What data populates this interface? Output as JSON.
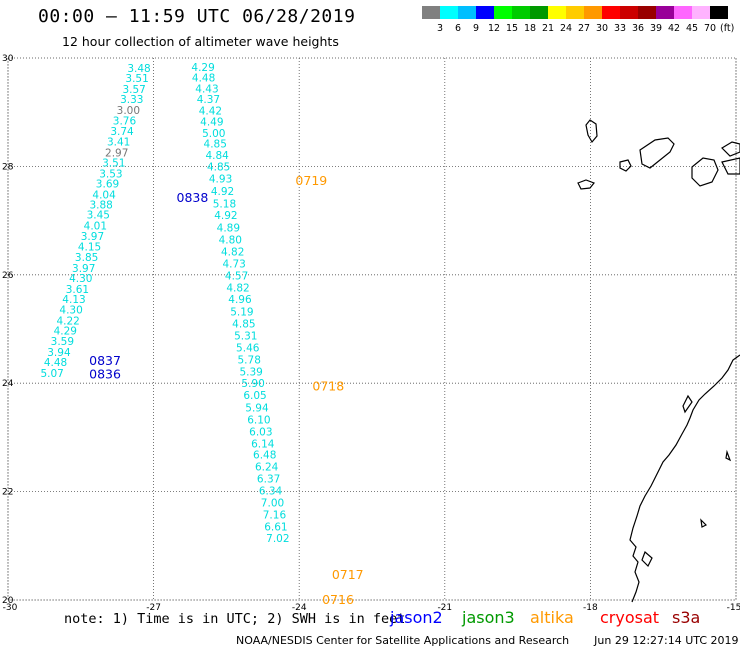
{
  "header": {
    "title": "00:00 – 11:59 UTC 06/28/2019",
    "subtitle": "12 hour collection of altimeter wave heights"
  },
  "legend": {
    "unit": "(ft)",
    "bins": [
      {
        "color": "#808080",
        "label": "3"
      },
      {
        "color": "#00ffff",
        "label": "6"
      },
      {
        "color": "#00bfff",
        "label": "9"
      },
      {
        "color": "#0000ff",
        "label": "12"
      },
      {
        "color": "#00ff00",
        "label": "15"
      },
      {
        "color": "#00cc00",
        "label": "18"
      },
      {
        "color": "#009900",
        "label": "21"
      },
      {
        "color": "#ffff00",
        "label": "24"
      },
      {
        "color": "#ffcc00",
        "label": "27"
      },
      {
        "color": "#ff9900",
        "label": "30"
      },
      {
        "color": "#ff0000",
        "label": "33"
      },
      {
        "color": "#cc0000",
        "label": "36"
      },
      {
        "color": "#990000",
        "label": "39"
      },
      {
        "color": "#990099",
        "label": "42"
      },
      {
        "color": "#ff66ff",
        "label": "45"
      },
      {
        "color": "#ffb3ff",
        "label": "70"
      },
      {
        "color": "#000000",
        "label": ""
      }
    ]
  },
  "footer": {
    "note": "note: 1) Time is in UTC; 2) SWH is in feet",
    "satellites": [
      {
        "name": "jason2",
        "color": "#0000ff"
      },
      {
        "name": "jason3",
        "color": "#009900"
      },
      {
        "name": "altika",
        "color": "#ff9900"
      },
      {
        "name": "cryosat",
        "color": "#ff0000"
      },
      {
        "name": "s3a",
        "color": "#990000"
      }
    ],
    "credit": "NOAA/NESDIS Center for Satellite Applications and Research",
    "timestamp": "Jun 29 12:27:14 UTC 2019"
  },
  "chart_data": {
    "type": "scatter",
    "title": "12 hour collection of altimeter wave heights",
    "xlim": [
      -30,
      -15
    ],
    "ylim": [
      20,
      30
    ],
    "x_ticks": [
      -30,
      -27,
      -24,
      -21,
      -18,
      -15
    ],
    "x_tick_labels": [
      "-30",
      "-27",
      "-24",
      "-21",
      "-18",
      "-15"
    ],
    "y_ticks": [
      20,
      22,
      24,
      26,
      28,
      30
    ],
    "grid": true,
    "series": [
      {
        "name": "jason2",
        "color": "#00dddd",
        "points": [
          {
            "lon": -27.3,
            "lat": 29.82,
            "v": "3.48"
          },
          {
            "lon": -27.34,
            "lat": 29.63,
            "v": "3.51"
          },
          {
            "lon": -27.4,
            "lat": 29.43,
            "v": "3.57"
          },
          {
            "lon": -27.45,
            "lat": 29.24,
            "v": "3.33"
          },
          {
            "lon": -27.52,
            "lat": 29.04,
            "v": "3.00",
            "c": "#777777"
          },
          {
            "lon": -27.6,
            "lat": 28.85,
            "v": "3.76"
          },
          {
            "lon": -27.65,
            "lat": 28.65,
            "v": "3.74"
          },
          {
            "lon": -27.72,
            "lat": 28.46,
            "v": "3.41"
          },
          {
            "lon": -27.76,
            "lat": 28.26,
            "v": "2.97",
            "c": "#777777"
          },
          {
            "lon": -27.82,
            "lat": 28.07,
            "v": "3.51"
          },
          {
            "lon": -27.88,
            "lat": 27.87,
            "v": "3.53"
          },
          {
            "lon": -27.95,
            "lat": 27.68,
            "v": "3.69"
          },
          {
            "lon": -28.02,
            "lat": 27.48,
            "v": "4.04"
          },
          {
            "lon": -28.08,
            "lat": 27.3,
            "v": "3.88"
          },
          {
            "lon": -28.14,
            "lat": 27.11,
            "v": "3.45"
          },
          {
            "lon": -28.2,
            "lat": 26.91,
            "v": "4.01"
          },
          {
            "lon": -28.26,
            "lat": 26.72,
            "v": "3.97"
          },
          {
            "lon": -28.32,
            "lat": 26.52,
            "v": "4.15"
          },
          {
            "lon": -28.38,
            "lat": 26.33,
            "v": "3.85"
          },
          {
            "lon": -28.44,
            "lat": 26.13,
            "v": "3.97"
          },
          {
            "lon": -28.5,
            "lat": 25.94,
            "v": "4.30"
          },
          {
            "lon": -28.57,
            "lat": 25.74,
            "v": "3.61"
          },
          {
            "lon": -28.64,
            "lat": 25.55,
            "v": "4.13"
          },
          {
            "lon": -28.7,
            "lat": 25.36,
            "v": "4.30"
          },
          {
            "lon": -28.76,
            "lat": 25.16,
            "v": "4.22"
          },
          {
            "lon": -28.82,
            "lat": 24.97,
            "v": "4.29"
          },
          {
            "lon": -28.88,
            "lat": 24.78,
            "v": "3.59"
          },
          {
            "lon": -28.95,
            "lat": 24.58,
            "v": "3.94"
          },
          {
            "lon": -29.02,
            "lat": 24.39,
            "v": "4.48"
          },
          {
            "lon": -29.09,
            "lat": 24.19,
            "v": "5.07"
          }
        ]
      },
      {
        "name": "altika",
        "color": "#00dddd",
        "points": [
          {
            "lon": -25.98,
            "lat": 29.83,
            "v": "4.29"
          },
          {
            "lon": -25.97,
            "lat": 29.64,
            "v": "4.48"
          },
          {
            "lon": -25.9,
            "lat": 29.44,
            "v": "4.43"
          },
          {
            "lon": -25.87,
            "lat": 29.24,
            "v": "4.37"
          },
          {
            "lon": -25.83,
            "lat": 29.03,
            "v": "4.42"
          },
          {
            "lon": -25.8,
            "lat": 28.83,
            "v": "4.49"
          },
          {
            "lon": -25.76,
            "lat": 28.62,
            "v": "5.00"
          },
          {
            "lon": -25.73,
            "lat": 28.42,
            "v": "4.85"
          },
          {
            "lon": -25.69,
            "lat": 28.21,
            "v": "4.84"
          },
          {
            "lon": -25.66,
            "lat": 28.0,
            "v": "4.85"
          },
          {
            "lon": -25.62,
            "lat": 27.78,
            "v": "4.93"
          },
          {
            "lon": -25.58,
            "lat": 27.55,
            "v": "4.92"
          },
          {
            "lon": -25.54,
            "lat": 27.32,
            "v": "5.18"
          },
          {
            "lon": -25.51,
            "lat": 27.1,
            "v": "4.92"
          },
          {
            "lon": -25.46,
            "lat": 26.87,
            "v": "4.89"
          },
          {
            "lon": -25.42,
            "lat": 26.65,
            "v": "4.80"
          },
          {
            "lon": -25.37,
            "lat": 26.43,
            "v": "4.82"
          },
          {
            "lon": -25.34,
            "lat": 26.21,
            "v": "4.73"
          },
          {
            "lon": -25.29,
            "lat": 25.99,
            "v": "4.57"
          },
          {
            "lon": -25.26,
            "lat": 25.77,
            "v": "4.82"
          },
          {
            "lon": -25.22,
            "lat": 25.55,
            "v": "4.96"
          },
          {
            "lon": -25.18,
            "lat": 25.32,
            "v": "5.19"
          },
          {
            "lon": -25.14,
            "lat": 25.1,
            "v": "4.85"
          },
          {
            "lon": -25.1,
            "lat": 24.88,
            "v": "5.31"
          },
          {
            "lon": -25.06,
            "lat": 24.66,
            "v": "5.46"
          },
          {
            "lon": -25.03,
            "lat": 24.44,
            "v": "5.78"
          },
          {
            "lon": -24.99,
            "lat": 24.22,
            "v": "5.39"
          },
          {
            "lon": -24.95,
            "lat": 24.0,
            "v": "5.90"
          },
          {
            "lon": -24.91,
            "lat": 23.78,
            "v": "6.05"
          },
          {
            "lon": -24.87,
            "lat": 23.55,
            "v": "5.94"
          },
          {
            "lon": -24.83,
            "lat": 23.33,
            "v": "6.10"
          },
          {
            "lon": -24.79,
            "lat": 23.11,
            "v": "6.03"
          },
          {
            "lon": -24.75,
            "lat": 22.89,
            "v": "6.14"
          },
          {
            "lon": -24.71,
            "lat": 22.68,
            "v": "6.48"
          },
          {
            "lon": -24.67,
            "lat": 22.46,
            "v": "6.24"
          },
          {
            "lon": -24.63,
            "lat": 22.24,
            "v": "6.37"
          },
          {
            "lon": -24.59,
            "lat": 22.02,
            "v": "6.34"
          },
          {
            "lon": -24.55,
            "lat": 21.8,
            "v": "7.00"
          },
          {
            "lon": -24.51,
            "lat": 21.58,
            "v": "7.16"
          },
          {
            "lon": -24.48,
            "lat": 21.36,
            "v": "6.61"
          },
          {
            "lon": -24.44,
            "lat": 21.14,
            "v": "7.02"
          }
        ]
      }
    ],
    "time_labels": [
      {
        "lon": -26.2,
        "lat": 27.44,
        "text": "0838",
        "color": "#0000cc"
      },
      {
        "lon": -28.0,
        "lat": 24.43,
        "text": "0837",
        "color": "#0000cc"
      },
      {
        "lon": -28.0,
        "lat": 24.18,
        "text": "0836",
        "color": "#0000cc"
      },
      {
        "lon": -23.75,
        "lat": 27.75,
        "text": "0719",
        "color": "#ff9900"
      },
      {
        "lon": -23.4,
        "lat": 23.96,
        "text": "0718",
        "color": "#ff9900"
      },
      {
        "lon": -23.0,
        "lat": 20.48,
        "text": "0717",
        "color": "#ff9900"
      },
      {
        "lon": -23.2,
        "lat": 20.02,
        "text": "0716",
        "color": "#ff9900"
      }
    ]
  }
}
